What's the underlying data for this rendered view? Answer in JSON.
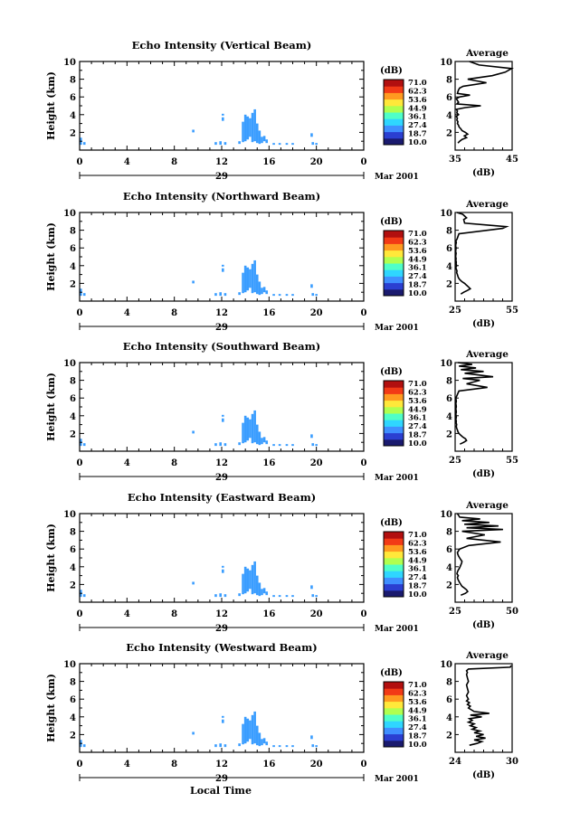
{
  "figure": {
    "x_axis_title": "Local Time",
    "date_label": "Mar 2001",
    "day_label": "29",
    "colorbar_unit": "(dB)",
    "colorbar_ticks": [
      "71.0",
      "62.3",
      "53.6",
      "44.9",
      "36.1",
      "27.4",
      "18.7",
      "10.0"
    ],
    "colorbar_colors": [
      "#1a1a6e",
      "#2b3fd1",
      "#3f8fff",
      "#2fd6ff",
      "#4fffc8",
      "#b0ff4f",
      "#ffe83a",
      "#ff9a20",
      "#f23a16",
      "#b20f0f"
    ],
    "avg_title": "Average",
    "avg_xlabel": "(dB)",
    "echo_color": "#3a9dff"
  },
  "chart_data": [
    {
      "type": "heatmap",
      "title": "Echo Intensity (Vertical Beam)",
      "ylabel": "Height (km)",
      "x_ticks": [
        "0",
        "4",
        "8",
        "12",
        "16",
        "20",
        "0"
      ],
      "y_ticks": [
        "2",
        "4",
        "6",
        "8",
        "10"
      ],
      "xlim": [
        0,
        24
      ],
      "ylim": [
        0,
        10
      ],
      "avg_profile": {
        "xlim": [
          35,
          45
        ],
        "x_ticks": [
          "35",
          "45"
        ],
        "values": [
          35.5,
          35.8,
          36.2,
          37.0,
          36.6,
          37.2,
          36.8,
          36.2,
          36.0,
          35.7,
          35.6,
          35.4,
          35.5,
          35.3,
          35.4,
          35.2,
          35.6,
          35.3,
          35.4,
          35.2,
          36.8,
          39.5,
          35.3,
          35.6,
          35.4,
          35.2,
          35.8,
          37.6,
          35.4,
          35.5,
          35.6,
          35.8,
          36.4,
          40.5,
          37.2,
          41.5,
          43.8,
          44.9,
          39.2,
          37.5
        ],
        "heights": [
          0.8,
          1.0,
          1.2,
          1.4,
          1.6,
          1.8,
          2.0,
          2.2,
          2.4,
          2.6,
          2.8,
          3.0,
          3.2,
          3.4,
          3.6,
          3.8,
          4.0,
          4.2,
          4.4,
          4.6,
          4.8,
          5.0,
          5.2,
          5.4,
          5.6,
          5.8,
          6.0,
          6.2,
          6.4,
          6.6,
          6.8,
          7.0,
          7.2,
          7.6,
          8.0,
          8.4,
          8.8,
          9.2,
          9.6,
          10.0
        ]
      }
    },
    {
      "type": "heatmap",
      "title": "Echo Intensity (Northward Beam)",
      "ylabel": "Height (km)",
      "x_ticks": [
        "0",
        "4",
        "8",
        "12",
        "16",
        "20",
        "0"
      ],
      "y_ticks": [
        "2",
        "4",
        "6",
        "8",
        "10"
      ],
      "xlim": [
        0,
        24
      ],
      "ylim": [
        0,
        10
      ],
      "avg_profile": {
        "xlim": [
          25,
          55
        ],
        "x_ticks": [
          "25",
          "55"
        ],
        "values": [
          28.0,
          29.5,
          31.5,
          33.0,
          32.0,
          31.0,
          30.0,
          28.5,
          27.5,
          26.8,
          26.5,
          26.2,
          25.8,
          26.0,
          25.6,
          25.4,
          25.8,
          25.5,
          25.6,
          25.4,
          25.5,
          25.3,
          25.4,
          25.5,
          25.3,
          25.4,
          25.5,
          25.3,
          25.4,
          25.6,
          25.4,
          26.0,
          27.0,
          50.0,
          52.0,
          30.0,
          29.5,
          31.0,
          29.0,
          26.0
        ],
        "heights": [
          0.8,
          1.0,
          1.2,
          1.4,
          1.6,
          1.8,
          2.0,
          2.2,
          2.4,
          2.6,
          2.8,
          3.0,
          3.2,
          3.4,
          3.6,
          3.8,
          4.0,
          4.2,
          4.4,
          4.6,
          4.8,
          5.0,
          5.2,
          5.4,
          5.6,
          5.8,
          6.0,
          6.2,
          6.4,
          6.6,
          6.8,
          7.0,
          7.6,
          8.2,
          8.4,
          8.8,
          9.2,
          9.4,
          9.8,
          10.0
        ]
      }
    },
    {
      "type": "heatmap",
      "title": "Echo Intensity (Southward Beam)",
      "ylabel": "Height (km)",
      "x_ticks": [
        "0",
        "4",
        "8",
        "12",
        "16",
        "20",
        "0"
      ],
      "y_ticks": [
        "2",
        "4",
        "6",
        "8",
        "10"
      ],
      "xlim": [
        0,
        24
      ],
      "ylim": [
        0,
        10
      ],
      "avg_profile": {
        "xlim": [
          25,
          55
        ],
        "x_ticks": [
          "25",
          "55"
        ],
        "values": [
          27.5,
          29.5,
          31.0,
          30.5,
          29.0,
          28.0,
          27.0,
          26.5,
          26.2,
          25.8,
          25.6,
          25.8,
          25.5,
          25.6,
          25.4,
          25.6,
          25.5,
          25.4,
          25.6,
          25.5,
          25.4,
          25.6,
          25.5,
          25.4,
          25.6,
          25.5,
          25.4,
          27.0,
          42.0,
          31.0,
          38.0,
          29.0,
          45.0,
          30.0,
          40.0,
          28.0,
          36.0,
          27.0,
          34.0,
          26.5
        ],
        "heights": [
          0.8,
          1.0,
          1.2,
          1.4,
          1.6,
          1.8,
          2.0,
          2.2,
          2.4,
          2.6,
          2.8,
          3.0,
          3.2,
          3.4,
          3.6,
          3.8,
          4.0,
          4.2,
          4.4,
          4.6,
          4.8,
          5.0,
          5.2,
          5.4,
          5.6,
          5.8,
          6.0,
          6.8,
          7.2,
          7.6,
          8.0,
          8.2,
          8.4,
          8.8,
          9.0,
          9.2,
          9.4,
          9.6,
          9.8,
          10.0
        ]
      }
    },
    {
      "type": "heatmap",
      "title": "Echo Intensity (Eastward Beam)",
      "ylabel": "Height (km)",
      "x_ticks": [
        "0",
        "4",
        "8",
        "12",
        "16",
        "20",
        "0"
      ],
      "y_ticks": [
        "2",
        "4",
        "6",
        "8",
        "10"
      ],
      "xlim": [
        0,
        24
      ],
      "ylim": [
        0,
        10
      ],
      "avg_profile": {
        "xlim": [
          25,
          50
        ],
        "x_ticks": [
          "25",
          "50"
        ],
        "values": [
          27.5,
          29.5,
          30.5,
          30.0,
          29.0,
          28.0,
          27.5,
          27.0,
          26.6,
          26.2,
          26.0,
          26.4,
          25.8,
          26.0,
          26.3,
          26.8,
          27.2,
          27.5,
          27.8,
          28.0,
          27.5,
          27.0,
          26.5,
          26.2,
          26.0,
          27.0,
          31.0,
          45.0,
          30.0,
          38.0,
          28.0,
          46.0,
          30.0,
          44.0,
          29.0,
          40.0,
          28.0,
          36.0,
          27.0,
          26.0
        ],
        "heights": [
          0.8,
          1.0,
          1.2,
          1.4,
          1.6,
          1.8,
          2.0,
          2.2,
          2.4,
          2.6,
          2.8,
          3.0,
          3.2,
          3.4,
          3.6,
          3.8,
          4.0,
          4.2,
          4.4,
          4.6,
          4.8,
          5.0,
          5.2,
          5.4,
          5.6,
          6.0,
          6.4,
          6.8,
          7.2,
          7.6,
          8.0,
          8.2,
          8.4,
          8.6,
          8.8,
          9.0,
          9.2,
          9.4,
          9.6,
          10.0
        ]
      }
    },
    {
      "type": "heatmap",
      "title": "Echo Intensity (Westward Beam)",
      "ylabel": "Height (km)",
      "x_ticks": [
        "0",
        "4",
        "8",
        "12",
        "16",
        "20",
        "0"
      ],
      "y_ticks": [
        "2",
        "4",
        "6",
        "8",
        "10"
      ],
      "xlim": [
        0,
        24
      ],
      "ylim": [
        0,
        10
      ],
      "avg_profile": {
        "xlim": [
          24,
          30
        ],
        "x_ticks": [
          "24",
          "30"
        ],
        "values": [
          25.5,
          26.3,
          26.8,
          26.0,
          27.2,
          26.2,
          27.0,
          26.0,
          26.6,
          25.8,
          26.2,
          25.6,
          26.0,
          25.4,
          25.8,
          25.5,
          26.8,
          25.6,
          27.6,
          26.0,
          25.7,
          25.4,
          25.6,
          25.3,
          25.5,
          25.2,
          25.4,
          25.3,
          25.2,
          25.4,
          25.3,
          25.2,
          25.4,
          25.3,
          25.2,
          25.3,
          25.2,
          25.4,
          29.8,
          29.9
        ],
        "heights": [
          0.8,
          1.0,
          1.2,
          1.4,
          1.6,
          1.8,
          2.0,
          2.2,
          2.4,
          2.6,
          2.8,
          3.0,
          3.2,
          3.4,
          3.6,
          3.8,
          4.0,
          4.2,
          4.4,
          4.6,
          4.8,
          5.0,
          5.2,
          5.4,
          5.6,
          5.8,
          6.0,
          6.2,
          6.4,
          6.8,
          7.2,
          7.6,
          8.0,
          8.4,
          8.8,
          9.0,
          9.2,
          9.4,
          9.6,
          9.8
        ]
      }
    }
  ],
  "echo_cells": [
    {
      "t": 0.1,
      "h0": 0.6,
      "h1": 1.4
    },
    {
      "t": 0.4,
      "h0": 0.6,
      "h1": 0.9
    },
    {
      "t": 9.6,
      "h0": 2.0,
      "h1": 2.3
    },
    {
      "t": 11.5,
      "h0": 0.6,
      "h1": 0.9
    },
    {
      "t": 11.9,
      "h0": 0.6,
      "h1": 1.0
    },
    {
      "t": 12.3,
      "h0": 0.6,
      "h1": 0.9
    },
    {
      "t": 12.1,
      "h0": 3.3,
      "h1": 3.7
    },
    {
      "t": 12.1,
      "h0": 3.9,
      "h1": 4.1
    },
    {
      "t": 13.5,
      "h0": 0.7,
      "h1": 1.0
    },
    {
      "t": 13.8,
      "h0": 0.9,
      "h1": 3.2
    },
    {
      "t": 14.0,
      "h0": 1.0,
      "h1": 4.0
    },
    {
      "t": 14.2,
      "h0": 1.2,
      "h1": 3.8
    },
    {
      "t": 14.4,
      "h0": 1.5,
      "h1": 3.6
    },
    {
      "t": 14.6,
      "h0": 0.9,
      "h1": 4.2
    },
    {
      "t": 14.8,
      "h0": 1.0,
      "h1": 4.6
    },
    {
      "t": 15.0,
      "h0": 0.8,
      "h1": 3.0
    },
    {
      "t": 15.2,
      "h0": 0.7,
      "h1": 2.2
    },
    {
      "t": 15.4,
      "h0": 0.8,
      "h1": 1.5
    },
    {
      "t": 15.6,
      "h0": 1.0,
      "h1": 1.6
    },
    {
      "t": 15.8,
      "h0": 0.8,
      "h1": 1.2
    },
    {
      "t": 16.4,
      "h0": 0.6,
      "h1": 0.8
    },
    {
      "t": 16.9,
      "h0": 0.6,
      "h1": 0.8
    },
    {
      "t": 17.5,
      "h0": 0.6,
      "h1": 0.8
    },
    {
      "t": 18.0,
      "h0": 0.6,
      "h1": 0.8
    },
    {
      "t": 19.7,
      "h0": 0.6,
      "h1": 0.9
    },
    {
      "t": 19.6,
      "h0": 1.5,
      "h1": 1.9
    },
    {
      "t": 20.0,
      "h0": 0.6,
      "h1": 0.8
    }
  ]
}
